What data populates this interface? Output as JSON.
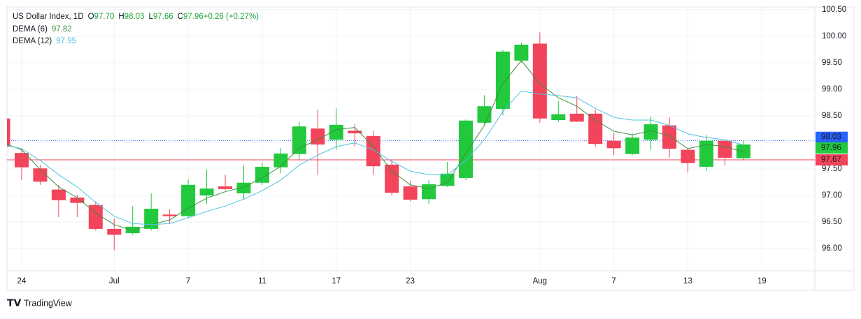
{
  "chart_data": {
    "type": "candlestick",
    "title": "US Dollar Index, 1D",
    "header": [
      {
        "label": "O",
        "value": "97.70"
      },
      {
        "label": "H",
        "value": "98.03"
      },
      {
        "label": "L",
        "value": "97.66"
      },
      {
        "label": "C",
        "value": "97.96"
      },
      {
        "label": "",
        "value": "+0.26 (+0.27%)"
      }
    ],
    "categories": [
      null,
      "24",
      null,
      null,
      null,
      null,
      "Jul",
      null,
      null,
      null,
      "7",
      null,
      null,
      null,
      "11",
      null,
      null,
      null,
      "17",
      null,
      null,
      null,
      "23",
      null,
      null,
      null,
      null,
      null,
      null,
      "Aug",
      null,
      null,
      null,
      "7",
      null,
      null,
      null,
      "13",
      null,
      null,
      null,
      "19"
    ],
    "open": [
      98.45,
      97.8,
      97.51,
      97.11,
      96.96,
      96.82,
      96.37,
      96.29,
      96.37,
      96.64,
      96.61,
      97.0,
      97.17,
      97.04,
      97.24,
      97.53,
      97.78,
      98.26,
      98.05,
      98.22,
      98.12,
      97.58,
      97.17,
      96.93,
      97.18,
      97.33,
      98.37,
      98.63,
      99.54,
      99.86,
      98.42,
      98.54,
      98.54,
      98.03,
      97.78,
      98.05,
      98.32,
      97.86,
      97.54,
      98.03,
      97.7,
      null
    ],
    "high": [
      98.5,
      97.89,
      97.58,
      97.2,
      97.01,
      96.89,
      96.57,
      96.8,
      97.04,
      96.74,
      97.3,
      97.49,
      97.39,
      97.57,
      97.62,
      97.89,
      98.39,
      98.61,
      98.64,
      98.34,
      98.22,
      97.68,
      97.28,
      97.29,
      97.63,
      98.43,
      98.89,
      99.74,
      99.89,
      100.07,
      98.78,
      98.87,
      98.61,
      98.18,
      98.17,
      98.49,
      98.47,
      97.89,
      98.14,
      98.05,
      98.03,
      null
    ],
    "low": [
      97.88,
      97.29,
      97.2,
      96.59,
      96.59,
      96.34,
      95.97,
      96.26,
      96.34,
      96.47,
      96.58,
      96.84,
      97.09,
      96.92,
      97.2,
      97.42,
      97.66,
      97.38,
      97.86,
      97.92,
      97.39,
      97.0,
      96.89,
      96.84,
      97.16,
      97.29,
      98.34,
      98.51,
      99.5,
      98.37,
      98.38,
      98.38,
      97.92,
      97.76,
      97.76,
      97.86,
      97.71,
      97.43,
      97.46,
      97.57,
      97.66,
      null
    ],
    "close": [
      97.92,
      97.53,
      97.26,
      96.91,
      96.86,
      96.37,
      96.26,
      96.41,
      96.75,
      96.61,
      97.2,
      97.13,
      97.12,
      97.24,
      97.54,
      97.79,
      98.3,
      97.96,
      98.33,
      98.17,
      97.55,
      97.05,
      96.92,
      97.21,
      97.41,
      98.41,
      98.68,
      99.71,
      99.84,
      98.45,
      98.53,
      98.39,
      97.97,
      97.89,
      98.09,
      98.34,
      97.88,
      97.61,
      98.03,
      97.71,
      97.96,
      null
    ],
    "up_color": "#22c93d",
    "down_color": "#f2445a",
    "series": [
      {
        "name": "DEMA (6)",
        "color": "#3e8f3e",
        "values": [
          97.99,
          97.86,
          97.49,
          97.16,
          96.96,
          96.67,
          96.45,
          96.34,
          96.45,
          96.54,
          96.76,
          96.95,
          97.07,
          97.16,
          97.33,
          97.55,
          97.89,
          98.05,
          98.24,
          98.28,
          97.92,
          97.46,
          97.2,
          97.13,
          97.24,
          97.79,
          98.32,
          99.11,
          99.54,
          99.11,
          98.84,
          98.68,
          98.42,
          98.21,
          98.14,
          98.22,
          98.12,
          97.88,
          97.96,
          97.92,
          97.82,
          null
        ]
      },
      {
        "name": "DEMA (12)",
        "color": "#4fc3e0",
        "values": [
          97.96,
          97.88,
          97.66,
          97.39,
          97.16,
          96.87,
          96.61,
          96.47,
          96.45,
          96.47,
          96.58,
          96.7,
          96.8,
          96.93,
          97.09,
          97.29,
          97.57,
          97.76,
          97.92,
          97.99,
          97.86,
          97.64,
          97.46,
          97.39,
          97.39,
          97.66,
          98.05,
          98.58,
          98.97,
          98.91,
          98.88,
          98.84,
          98.64,
          98.47,
          98.42,
          98.42,
          98.32,
          98.16,
          98.09,
          98.05,
          97.95,
          null
        ]
      }
    ],
    "ylim": [
      95.58,
      100.55
    ],
    "yticks": [
      {
        "value": 96,
        "label": "96.00"
      },
      {
        "value": 96.5,
        "label": "96.50"
      },
      {
        "value": 97,
        "label": "97.00"
      },
      {
        "value": 97.5,
        "label": "97.50"
      },
      {
        "value": 98,
        "label": "98.00"
      },
      {
        "value": 98.5,
        "label": "98.50"
      },
      {
        "value": 99,
        "label": "99.00"
      },
      {
        "value": 99.5,
        "label": "99.50"
      },
      {
        "value": 100,
        "label": "100.00"
      },
      {
        "value": 100.5,
        "label": "100.50"
      }
    ],
    "price_lines": [
      {
        "value": 98.03,
        "color": "#2962ff",
        "dash": true
      },
      {
        "value": 97.96,
        "color": "#22c93d",
        "dash": false
      },
      {
        "value": 97.67,
        "color": "#f2445a",
        "dash": false
      }
    ],
    "grid": true,
    "brand": "TradingView"
  }
}
